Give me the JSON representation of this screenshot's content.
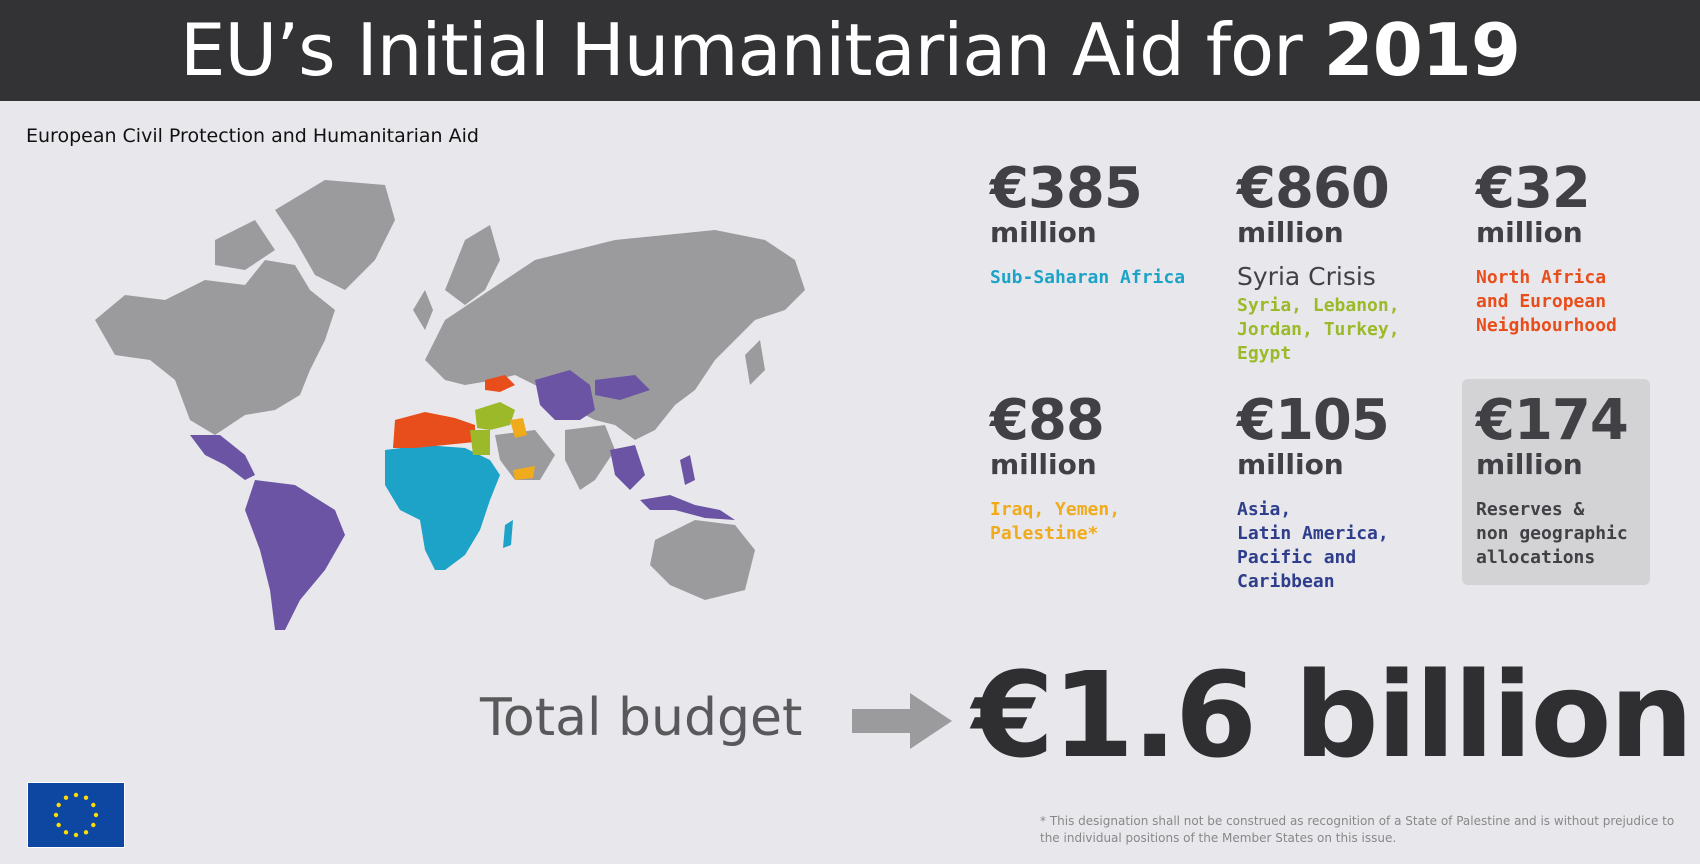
{
  "header": {
    "title_prefix": "EU’s Initial Humanitarian Aid for ",
    "title_year": "2019"
  },
  "subtitle": "European Civil Protection and Humanitarian Aid",
  "regions": [
    {
      "amount": "€385",
      "unit": "million",
      "label": "Sub-Saharan Africa",
      "color": "#1da3c8"
    },
    {
      "amount": "€860",
      "unit": "million",
      "title": "Syria Crisis",
      "label": "Syria, Lebanon,\nJordan, Turkey,\nEgypt",
      "color": "#9bb929"
    },
    {
      "amount": "€32",
      "unit": "million",
      "label": "North Africa\nand European\nNeighbourhood",
      "color": "#e84e1c"
    },
    {
      "amount": "€88",
      "unit": "million",
      "label": "Iraq, Yemen,\nPalestine*",
      "color": "#f0ab1c"
    },
    {
      "amount": "€105",
      "unit": "million",
      "label": "Asia,\nLatin America,\nPacific and\nCaribbean",
      "color": "#2e3e8c"
    },
    {
      "amount": "€174",
      "unit": "million",
      "label": "Reserves &\nnon geographic\nallocations",
      "color": "#414145"
    }
  ],
  "total": {
    "label": "Total budget",
    "value": "€1.6 billion"
  },
  "footnote": "*  This designation shall not be construed as recognition of a State of Palestine and is without prejudice to the individual positions of the Member States on this issue.",
  "colors": {
    "map_base": "#9b9b9e",
    "purple": "#6a54a3",
    "header_bg": "#333335",
    "flag_blue": "#0e47a1",
    "flag_star": "#ffdd00"
  }
}
